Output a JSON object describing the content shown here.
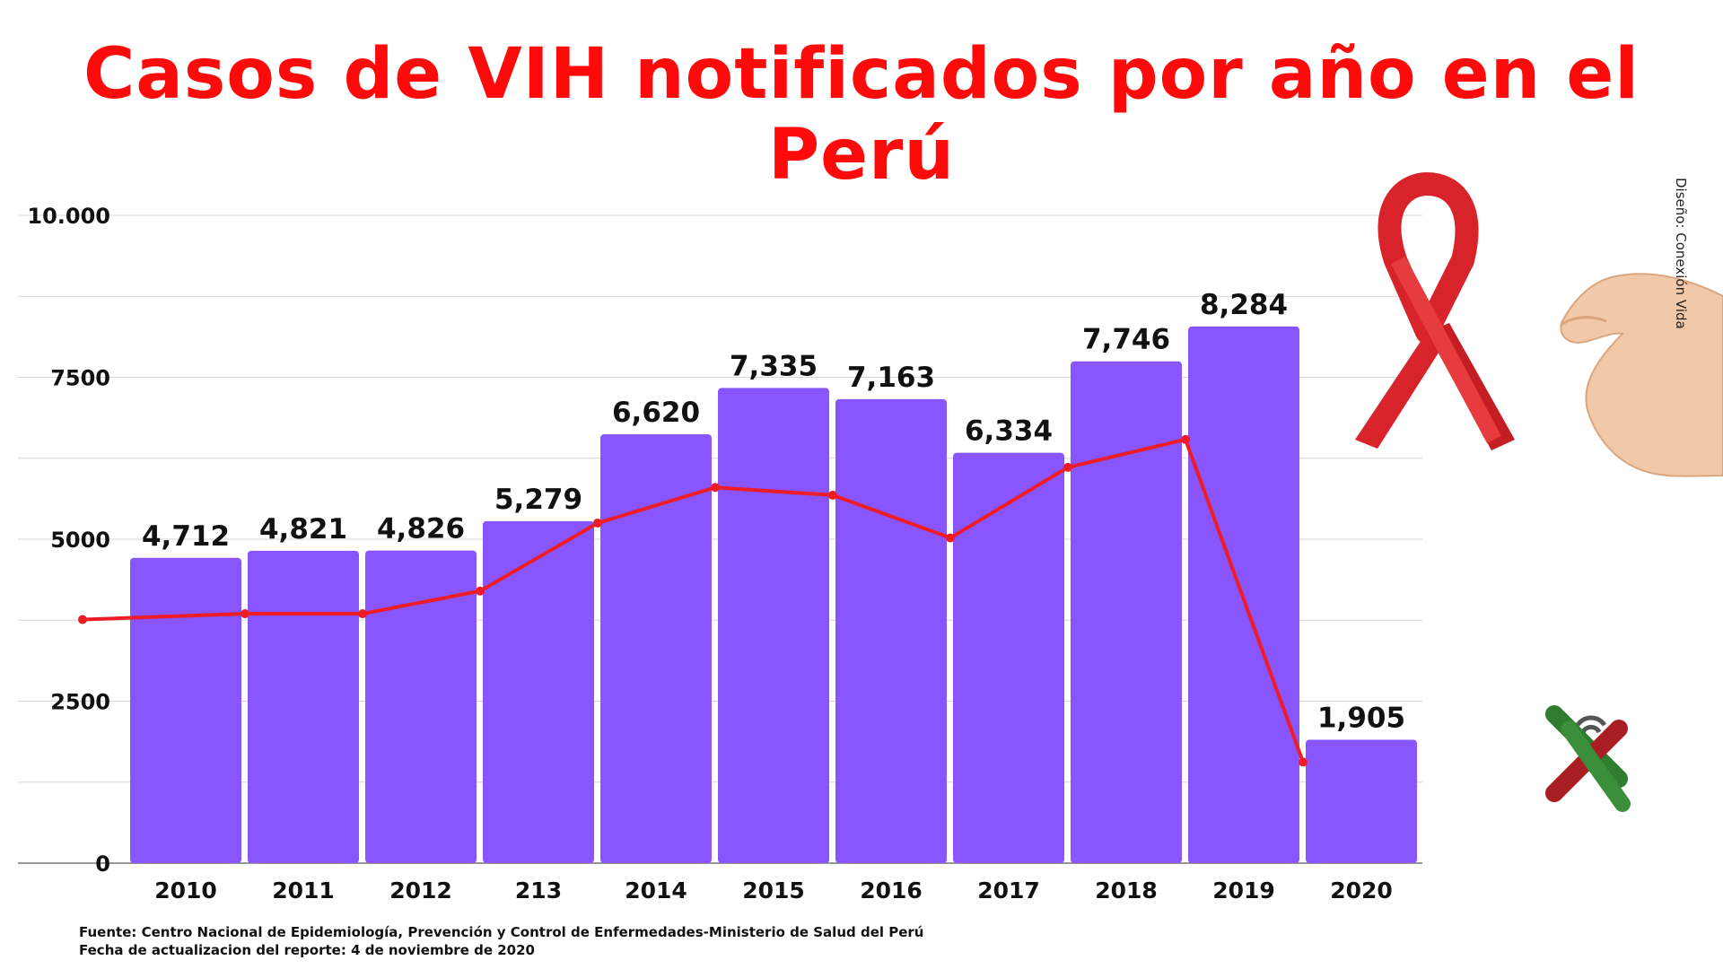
{
  "title": "Casos de VIH notificados por año en el Perú",
  "credit": "Diseño: Conexión Vida",
  "source_line1": "Fuente: Centro Nacional de Epidemiología, Prevención y Control de Enfermedades-Ministerio de Salud del Perú",
  "source_line2": "Fecha de actualizacion del reporte: 4 de noviembre de 2020",
  "chart_data": {
    "type": "bar",
    "title": "Casos de VIH notificados por año en el Perú",
    "xlabel": "",
    "ylabel": "",
    "categories": [
      "2010",
      "2011",
      "2012",
      "213",
      "2014",
      "2015",
      "2016",
      "2017",
      "2018",
      "2019",
      "2020"
    ],
    "values": [
      4712,
      4821,
      4826,
      5279,
      6620,
      7335,
      7163,
      6334,
      7746,
      8284,
      1905
    ],
    "value_labels": [
      "4,712",
      "4,821",
      "4,826",
      "5,279",
      "6,620",
      "7,335",
      "7,163",
      "6,334",
      "7,746",
      "8,284",
      "1,905"
    ],
    "line_values": [
      3760,
      3850,
      3850,
      4200,
      5250,
      5800,
      5680,
      5020,
      6110,
      6540,
      1560
    ],
    "ylim": [
      0,
      10000
    ],
    "yticks": [
      0,
      2500,
      5000,
      7500,
      10000
    ],
    "ytick_labels": [
      "0",
      "2500",
      "5000",
      "7500",
      "10.000"
    ],
    "grid": true,
    "legend": "none",
    "colors": {
      "bar": "#8855ff",
      "line": "#ee1c25",
      "title": "#ff0a0a"
    }
  }
}
